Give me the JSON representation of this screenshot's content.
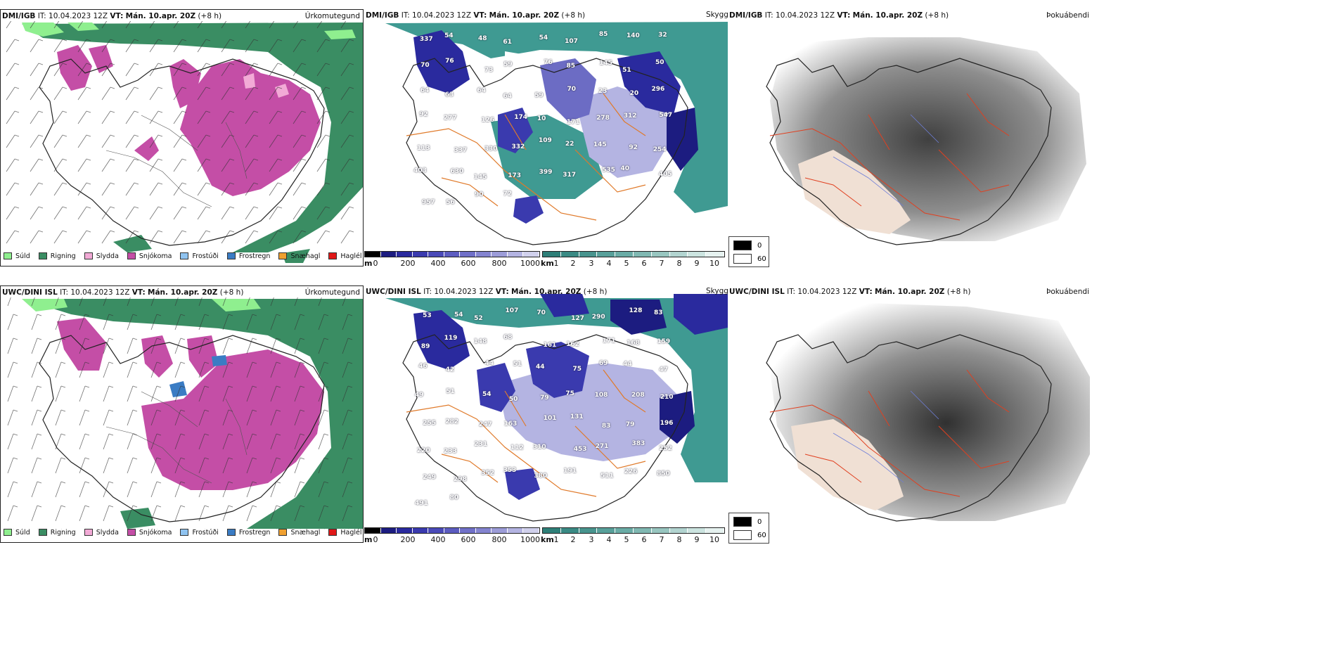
{
  "rows": [
    {
      "model": "DMI/IGB",
      "it_label": "IT:",
      "it_value": "10.04.2023 12Z",
      "vt_label": "VT:",
      "vt_value": "Mán. 10.apr. 20Z",
      "lead": "(+8 h)"
    },
    {
      "model": "UWC/DINI ISL",
      "it_label": "IT:",
      "it_value": "10.04.2023 12Z",
      "vt_label": "VT:",
      "vt_value": "Mán. 10.apr. 20Z",
      "lead": "(+8 h)"
    }
  ],
  "panel_types": {
    "precip": "Úrkomutegund",
    "visibility": "Skyggni",
    "fog": "Þokuábendi"
  },
  "precip_legend": [
    {
      "label": "Súld",
      "color": "#8fef8f"
    },
    {
      "label": "Rigning",
      "color": "#3a8d63"
    },
    {
      "label": "Slydda",
      "color": "#f2aad6"
    },
    {
      "label": "Snjókoma",
      "color": "#c44ea6"
    },
    {
      "label": "Frostúði",
      "color": "#8fc3f0"
    },
    {
      "label": "Frostregn",
      "color": "#3a7cc4"
    },
    {
      "label": "Snæhagl",
      "color": "#f0a030"
    },
    {
      "label": "Haglél",
      "color": "#e01818"
    }
  ],
  "colorbar_m": {
    "unit": "m",
    "ticks": [
      "0",
      "200",
      "400",
      "600",
      "800",
      "1000"
    ],
    "colors": [
      "#000000",
      "#1c1c80",
      "#2a2a9e",
      "#3a3aae",
      "#4a4ab8",
      "#5c5cc0",
      "#7070c8",
      "#8484d0",
      "#9c9cd8",
      "#b4b4e2",
      "#d0d0ec"
    ]
  },
  "colorbar_km": {
    "unit": "km",
    "ticks": [
      "1",
      "2",
      "3",
      "4",
      "5",
      "6",
      "7",
      "8",
      "9",
      "10"
    ],
    "colors": [
      "#2e7f78",
      "#3a8a84",
      "#48948e",
      "#58a09a",
      "#6aaca6",
      "#80b8b2",
      "#98c6c0",
      "#b2d4d0",
      "#cce4e0",
      "#e6f2f0"
    ]
  },
  "fog_legend": [
    {
      "label": "0",
      "color": "#000000"
    },
    {
      "label": "60",
      "color": "#ffffff"
    }
  ],
  "visibility_labels_top": [
    "337",
    "54",
    "48",
    "61",
    "54",
    "107",
    "85",
    "140",
    "32",
    "70",
    "76",
    "73",
    "59",
    "76",
    "85",
    "145",
    "51",
    "50",
    "64",
    "63",
    "64",
    "64",
    "59",
    "70",
    "23",
    "20",
    "296",
    "92",
    "277",
    "126",
    "174",
    "10",
    "171",
    "278",
    "312",
    "547",
    "113",
    "337",
    "330",
    "332",
    "109",
    "22",
    "145",
    "92",
    "254",
    "403",
    "630",
    "145",
    "173",
    "399",
    "317",
    "535",
    "40",
    "405",
    "957",
    "56",
    "90",
    "72"
  ],
  "visibility_labels_bottom": [
    "53",
    "54",
    "52",
    "107",
    "70",
    "127",
    "290",
    "128",
    "83",
    "89",
    "119",
    "148",
    "68",
    "161",
    "162",
    "171",
    "168",
    "159",
    "46",
    "42",
    "44",
    "51",
    "44",
    "75",
    "69",
    "44",
    "47",
    "49",
    "51",
    "54",
    "50",
    "79",
    "75",
    "108",
    "208",
    "210",
    "255",
    "282",
    "247",
    "163",
    "101",
    "131",
    "83",
    "79",
    "196",
    "220",
    "233",
    "231",
    "112",
    "310",
    "453",
    "271",
    "383",
    "252",
    "249",
    "298",
    "352",
    "353",
    "380",
    "191",
    "511",
    "226",
    "850",
    "491",
    "80"
  ]
}
